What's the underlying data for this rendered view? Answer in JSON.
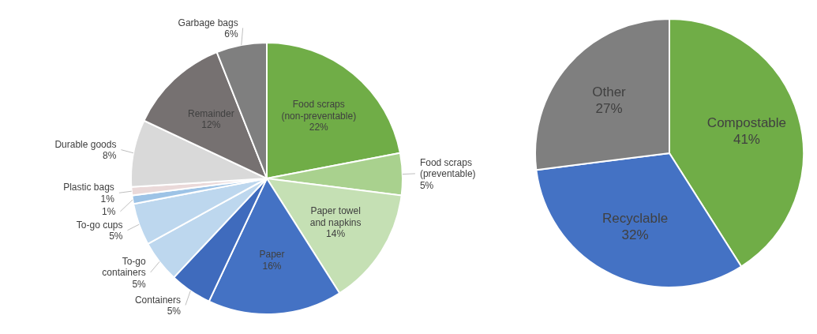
{
  "chart_data": [
    {
      "type": "pie",
      "categories": [
        "Food scraps (non-preventable)",
        "Food scraps (preventable)",
        "Paper towel and napkins",
        "Paper",
        "Containers",
        "To-go containers",
        "To-go cups",
        null,
        "Plastic bags",
        "Durable goods",
        "Remainder",
        "Garbage bags"
      ],
      "values": [
        22,
        5,
        14,
        16,
        5,
        5,
        5,
        1,
        1,
        8,
        12,
        6
      ],
      "value_labels": [
        "22%",
        "5%",
        "14%",
        "16%",
        "5%",
        "5%",
        "5%",
        "1%",
        "1%",
        "8%",
        "12%",
        "6%"
      ],
      "colors": [
        "#70ad47",
        "#a9d18e",
        "#c5e0b4",
        "#4472c4",
        "#3f6bbd",
        "#bdd7ee",
        "#bdd7ee",
        "#9dc3e6",
        "#ead9d9",
        "#d9d9d9",
        "#767171",
        "#7f7f7f"
      ]
    },
    {
      "type": "pie",
      "categories": [
        "Compostable",
        "Recyclable",
        "Other"
      ],
      "values": [
        41,
        32,
        27
      ],
      "colors": [
        "#70ad47",
        "#4472c4",
        "#7f7f7f"
      ],
      "value_labels": [
        "41%",
        "32%",
        "27%"
      ]
    }
  ]
}
